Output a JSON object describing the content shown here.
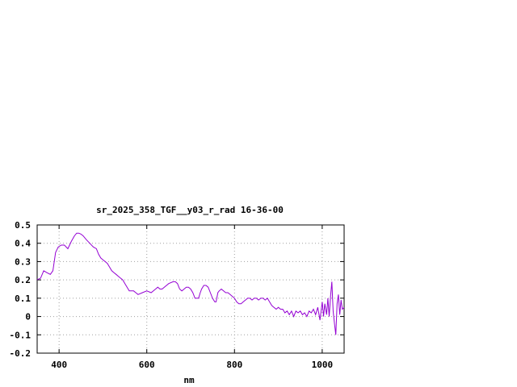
{
  "chart_data": {
    "type": "line",
    "title": "sr_2025_358_TGF__y03_r_rad 16-36-00",
    "xlabel": "nm",
    "ylabel": "",
    "xlim": [
      350,
      1050
    ],
    "ylim": [
      -0.2,
      0.5
    ],
    "xticks": [
      400,
      600,
      800,
      1000
    ],
    "xtick_labels": [
      "400",
      "600",
      "800",
      "1000"
    ],
    "yticks": [
      -0.2,
      -0.1,
      0,
      0.1,
      0.2,
      0.3,
      0.4,
      0.5
    ],
    "ytick_labels": [
      "-0.2",
      "-0.1",
      "0",
      "0.1",
      "0.2",
      "0.3",
      "0.4",
      "0.5"
    ],
    "grid": true,
    "legend": "none",
    "line_color": "#9400d3",
    "series": [
      {
        "x": [
          350,
          358,
          365,
          372,
          380,
          386,
          392,
          398,
          405,
          412,
          420,
          428,
          435,
          440,
          445,
          450,
          455,
          462,
          470,
          478,
          485,
          490,
          495,
          500,
          505,
          510,
          515,
          520,
          525,
          530,
          535,
          540,
          545,
          550,
          555,
          560,
          565,
          570,
          575,
          580,
          590,
          600,
          610,
          620,
          625,
          630,
          635,
          640,
          650,
          660,
          665,
          670,
          675,
          680,
          685,
          690,
          695,
          700,
          705,
          710,
          715,
          718,
          722,
          725,
          730,
          735,
          740,
          745,
          750,
          755,
          758,
          762,
          765,
          770,
          775,
          780,
          785,
          790,
          795,
          800,
          805,
          810,
          815,
          820,
          825,
          830,
          835,
          840,
          845,
          850,
          855,
          860,
          865,
          870,
          875,
          880,
          885,
          890,
          895,
          900,
          905,
          910,
          915,
          920,
          925,
          930,
          935,
          940,
          945,
          950,
          955,
          960,
          965,
          970,
          975,
          980,
          985,
          990,
          995,
          1000,
          1003,
          1006,
          1010,
          1013,
          1016,
          1019,
          1022,
          1025,
          1028,
          1031,
          1034,
          1037,
          1040,
          1043,
          1046,
          1050
        ],
        "y": [
          0.2,
          0.21,
          0.25,
          0.24,
          0.23,
          0.25,
          0.35,
          0.38,
          0.39,
          0.39,
          0.37,
          0.41,
          0.44,
          0.455,
          0.455,
          0.45,
          0.44,
          0.42,
          0.4,
          0.38,
          0.37,
          0.34,
          0.32,
          0.31,
          0.3,
          0.29,
          0.27,
          0.25,
          0.24,
          0.23,
          0.22,
          0.21,
          0.2,
          0.18,
          0.16,
          0.14,
          0.14,
          0.14,
          0.13,
          0.12,
          0.13,
          0.14,
          0.13,
          0.15,
          0.16,
          0.15,
          0.15,
          0.16,
          0.18,
          0.19,
          0.19,
          0.18,
          0.15,
          0.14,
          0.15,
          0.16,
          0.16,
          0.15,
          0.13,
          0.1,
          0.1,
          0.1,
          0.13,
          0.15,
          0.17,
          0.17,
          0.16,
          0.13,
          0.1,
          0.08,
          0.08,
          0.13,
          0.14,
          0.15,
          0.14,
          0.13,
          0.13,
          0.12,
          0.11,
          0.1,
          0.08,
          0.07,
          0.07,
          0.08,
          0.09,
          0.1,
          0.1,
          0.09,
          0.1,
          0.1,
          0.09,
          0.1,
          0.1,
          0.09,
          0.1,
          0.08,
          0.06,
          0.05,
          0.04,
          0.05,
          0.04,
          0.04,
          0.02,
          0.03,
          0.01,
          0.03,
          0.0,
          0.03,
          0.02,
          0.03,
          0.01,
          0.02,
          0.0,
          0.03,
          0.02,
          0.04,
          0.01,
          0.05,
          -0.02,
          0.08,
          0.0,
          0.07,
          0.01,
          0.1,
          0.0,
          0.11,
          0.19,
          0.03,
          -0.04,
          -0.1,
          0.07,
          0.12,
          0.01,
          0.09,
          0.04,
          0.05
        ]
      }
    ]
  }
}
